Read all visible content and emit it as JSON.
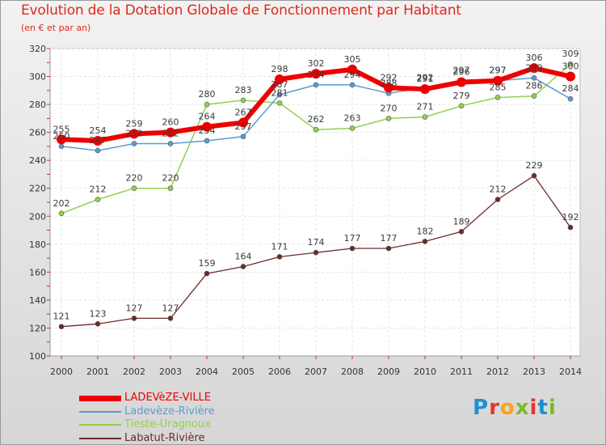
{
  "title": "Evolution de la Dotation Globale de Fonctionnement par Habitant",
  "subtitle": "(en € et par an)",
  "brand": {
    "letters": [
      {
        "ch": "P",
        "color": "#1f8fd1"
      },
      {
        "ch": "r",
        "color": "#e8342a"
      },
      {
        "ch": "o",
        "color": "#f7a21b"
      },
      {
        "ch": "x",
        "color": "#7bbb2a"
      },
      {
        "ch": "i",
        "color": "#e8342a"
      },
      {
        "ch": "t",
        "color": "#1f8fd1"
      },
      {
        "ch": "i",
        "color": "#7bbb2a"
      }
    ]
  },
  "chart_data": {
    "type": "line",
    "title": "Evolution de la Dotation Globale de Fonctionnement par Habitant",
    "subtitle": "(en € et par an)",
    "x": [
      "2000",
      "2001",
      "2002",
      "2003",
      "2004",
      "2005",
      "2006",
      "2007",
      "2008",
      "2009",
      "2010",
      "2011",
      "2012",
      "2013",
      "2014"
    ],
    "ylim": [
      100,
      320
    ],
    "yticks": [
      100,
      120,
      140,
      160,
      180,
      200,
      220,
      240,
      260,
      280,
      300,
      320
    ],
    "grid": true,
    "legend": "bottom-left",
    "series": [
      {
        "name": "LADEVèZE-VILLE",
        "color": "#ee0000",
        "values": [
          255,
          254,
          259,
          260,
          264,
          267,
          298,
          302,
          305,
          292,
          291,
          296,
          297,
          306,
          300
        ]
      },
      {
        "name": "Ladevèze-Rivière",
        "color": "#5b9bd5",
        "values": [
          250,
          247,
          252,
          252,
          254,
          257,
          287,
          294,
          294,
          288,
          292,
          297,
          297,
          299,
          284
        ]
      },
      {
        "name": "Tieste-Uragnoux",
        "color": "#92d050",
        "values": [
          202,
          212,
          220,
          220,
          280,
          283,
          281,
          262,
          263,
          270,
          271,
          279,
          285,
          286,
          309
        ]
      },
      {
        "name": "Labatut-Rivière",
        "color": "#6b2a2a",
        "values": [
          121,
          123,
          127,
          127,
          159,
          164,
          171,
          174,
          177,
          177,
          182,
          189,
          212,
          229,
          192
        ]
      }
    ]
  }
}
